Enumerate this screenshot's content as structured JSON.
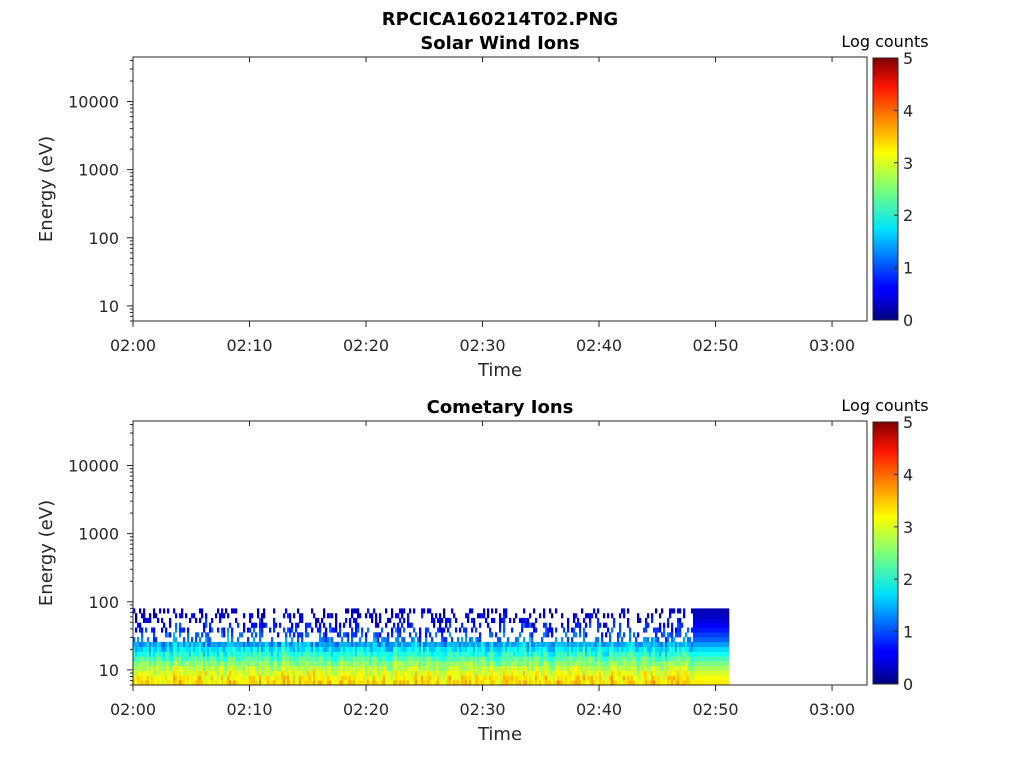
{
  "figure_title": "RPCICA160214T02.PNG",
  "chart_data": [
    {
      "type": "heatmap",
      "title": "Solar Wind Ions",
      "xlabel": "Time",
      "ylabel": "Energy (eV)",
      "x_ticks": [
        "02:00",
        "02:10",
        "02:20",
        "02:30",
        "02:40",
        "02:50",
        "03:00"
      ],
      "x_range": [
        "02:00",
        "03:03"
      ],
      "y_scale": "log",
      "y_ticks": [
        "10",
        "100",
        "1000",
        "10000"
      ],
      "y_range": [
        6,
        45000
      ],
      "colorbar_label": "Log counts",
      "colorbar_ticks": [
        "0",
        "1",
        "2",
        "3",
        "4",
        "5"
      ],
      "colorbar_range": [
        0,
        5
      ],
      "colormap": "jet",
      "data_present": false
    },
    {
      "type": "heatmap",
      "title": "Cometary Ions",
      "xlabel": "Time",
      "ylabel": "Energy (eV)",
      "x_ticks": [
        "02:00",
        "02:10",
        "02:20",
        "02:30",
        "02:40",
        "02:50",
        "03:00"
      ],
      "x_range": [
        "02:00",
        "03:03"
      ],
      "y_scale": "log",
      "y_ticks": [
        "10",
        "100",
        "1000",
        "10000"
      ],
      "y_range": [
        6,
        45000
      ],
      "colorbar_label": "Log counts",
      "colorbar_ticks": [
        "0",
        "1",
        "2",
        "3",
        "4",
        "5"
      ],
      "colorbar_range": [
        0,
        5
      ],
      "colormap": "jet",
      "data_present": true,
      "data_time_range": [
        "02:00",
        "02:51"
      ],
      "data_energy_range_eV": [
        6,
        80
      ],
      "approx_log_counts_profile": {
        "energy_eV": [
          7,
          10,
          14,
          20,
          28,
          40,
          56,
          80
        ],
        "log_counts": [
          3.3,
          2.9,
          2.4,
          1.8,
          1.2,
          0.8,
          0.5,
          0.3
        ]
      }
    }
  ]
}
